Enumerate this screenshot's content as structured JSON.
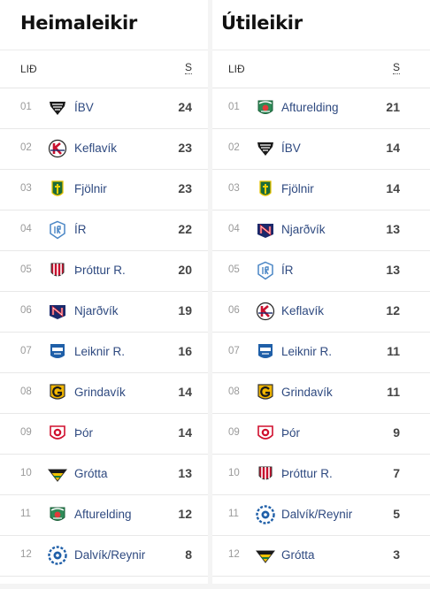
{
  "home": {
    "title": "Heimaleikir",
    "col_team": "LIÐ",
    "col_points": "S",
    "rows": [
      {
        "rank": "01",
        "team": "ÍBV",
        "points": "24",
        "logo": "ibv"
      },
      {
        "rank": "02",
        "team": "Keflavík",
        "points": "23",
        "logo": "keflavik"
      },
      {
        "rank": "03",
        "team": "Fjölnir",
        "points": "23",
        "logo": "fjolnir"
      },
      {
        "rank": "04",
        "team": "ÍR",
        "points": "22",
        "logo": "ir"
      },
      {
        "rank": "05",
        "team": "Þróttur R.",
        "points": "20",
        "logo": "throttur"
      },
      {
        "rank": "06",
        "team": "Njarðvík",
        "points": "19",
        "logo": "njardvik"
      },
      {
        "rank": "07",
        "team": "Leiknir R.",
        "points": "16",
        "logo": "leiknir"
      },
      {
        "rank": "08",
        "team": "Grindavík",
        "points": "14",
        "logo": "grindavik"
      },
      {
        "rank": "09",
        "team": "Þór",
        "points": "14",
        "logo": "thor"
      },
      {
        "rank": "10",
        "team": "Grótta",
        "points": "13",
        "logo": "grotta"
      },
      {
        "rank": "11",
        "team": "Afturelding",
        "points": "12",
        "logo": "afturelding"
      },
      {
        "rank": "12",
        "team": "Dalvík/Reynir",
        "points": "8",
        "logo": "dalvik"
      }
    ]
  },
  "away": {
    "title": "Útileikir",
    "col_team": "LIÐ",
    "col_points": "S",
    "rows": [
      {
        "rank": "01",
        "team": "Afturelding",
        "points": "21",
        "logo": "afturelding"
      },
      {
        "rank": "02",
        "team": "ÍBV",
        "points": "14",
        "logo": "ibv"
      },
      {
        "rank": "03",
        "team": "Fjölnir",
        "points": "14",
        "logo": "fjolnir"
      },
      {
        "rank": "04",
        "team": "Njarðvík",
        "points": "13",
        "logo": "njardvik"
      },
      {
        "rank": "05",
        "team": "ÍR",
        "points": "13",
        "logo": "ir"
      },
      {
        "rank": "06",
        "team": "Keflavík",
        "points": "12",
        "logo": "keflavik"
      },
      {
        "rank": "07",
        "team": "Leiknir R.",
        "points": "11",
        "logo": "leiknir"
      },
      {
        "rank": "08",
        "team": "Grindavík",
        "points": "11",
        "logo": "grindavik"
      },
      {
        "rank": "09",
        "team": "Þór",
        "points": "9",
        "logo": "thor"
      },
      {
        "rank": "10",
        "team": "Þróttur R.",
        "points": "7",
        "logo": "throttur"
      },
      {
        "rank": "11",
        "team": "Dalvík/Reynir",
        "points": "5",
        "logo": "dalvik"
      },
      {
        "rank": "12",
        "team": "Grótta",
        "points": "3",
        "logo": "grotta"
      }
    ]
  }
}
